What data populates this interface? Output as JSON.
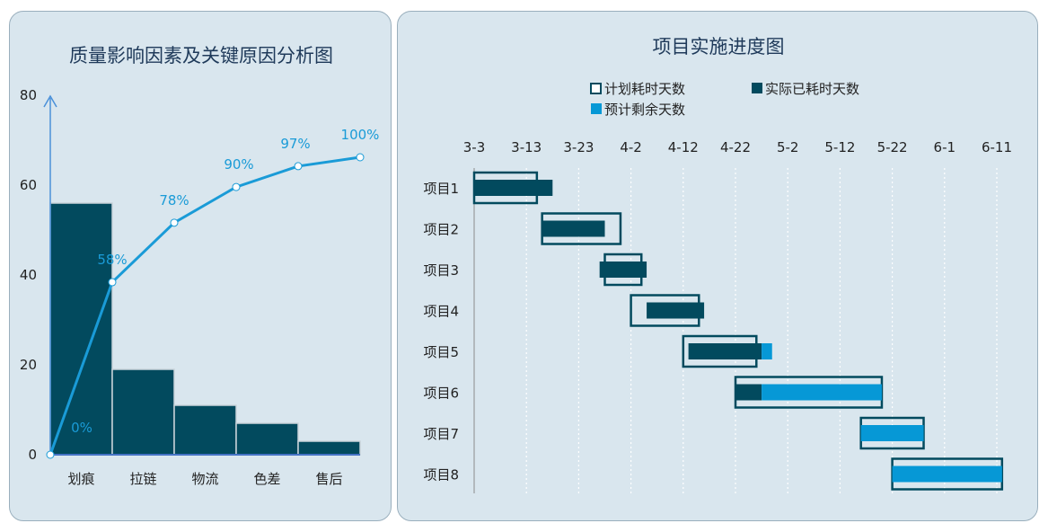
{
  "colors": {
    "dark": "#024a5e",
    "accent": "#1a9bd7",
    "light": "#0698d6",
    "gridline": "#ffffff"
  },
  "chart_data": [
    {
      "type": "bar",
      "title": "质量影响因素及关键原因分析图",
      "categories": [
        "划痕",
        "拉链",
        "物流",
        "色差",
        "售后"
      ],
      "values": [
        56,
        19,
        11,
        7,
        3
      ],
      "ylim": [
        0,
        80
      ],
      "yticks": [
        0,
        20,
        40,
        60,
        80
      ],
      "line_series": {
        "type": "line",
        "values": [
          0,
          58,
          78,
          90,
          97,
          100
        ],
        "labels": [
          "0%",
          "58%",
          "78%",
          "90%",
          "97%",
          "100%"
        ]
      }
    },
    {
      "type": "gantt",
      "title": "项目实施进度图",
      "legend": [
        "计划耗时天数",
        "实际已耗时天数",
        "预计剩余天数"
      ],
      "x_ticks": [
        "3-3",
        "3-13",
        "3-23",
        "4-2",
        "4-12",
        "4-22",
        "5-2",
        "5-12",
        "5-22",
        "6-1",
        "6-11"
      ],
      "start_date": "3-3",
      "projects": [
        {
          "name": "项目1",
          "plan_start": 0,
          "plan_days": 12,
          "actual_start": 0,
          "actual_days": 15,
          "remain_days": 0
        },
        {
          "name": "项目2",
          "plan_start": 13,
          "plan_days": 15,
          "actual_start": 13,
          "actual_days": 12,
          "remain_days": 0
        },
        {
          "name": "项目3",
          "plan_start": 25,
          "plan_days": 7,
          "actual_start": 24,
          "actual_days": 9,
          "remain_days": 0
        },
        {
          "name": "项目4",
          "plan_start": 30,
          "plan_days": 13,
          "actual_start": 33,
          "actual_days": 11,
          "remain_days": 0
        },
        {
          "name": "项目5",
          "plan_start": 40,
          "plan_days": 14,
          "actual_start": 41,
          "actual_days": 14,
          "remain_days": 2
        },
        {
          "name": "项目6",
          "plan_start": 50,
          "plan_days": 28,
          "actual_start": 50,
          "actual_days": 5,
          "remain_days": 23
        },
        {
          "name": "项目7",
          "plan_start": 74,
          "plan_days": 12,
          "actual_start": 74,
          "actual_days": 0,
          "remain_days": 12
        },
        {
          "name": "项目8",
          "plan_start": 80,
          "plan_days": 21,
          "actual_start": 80,
          "actual_days": 0,
          "remain_days": 21
        }
      ]
    }
  ]
}
